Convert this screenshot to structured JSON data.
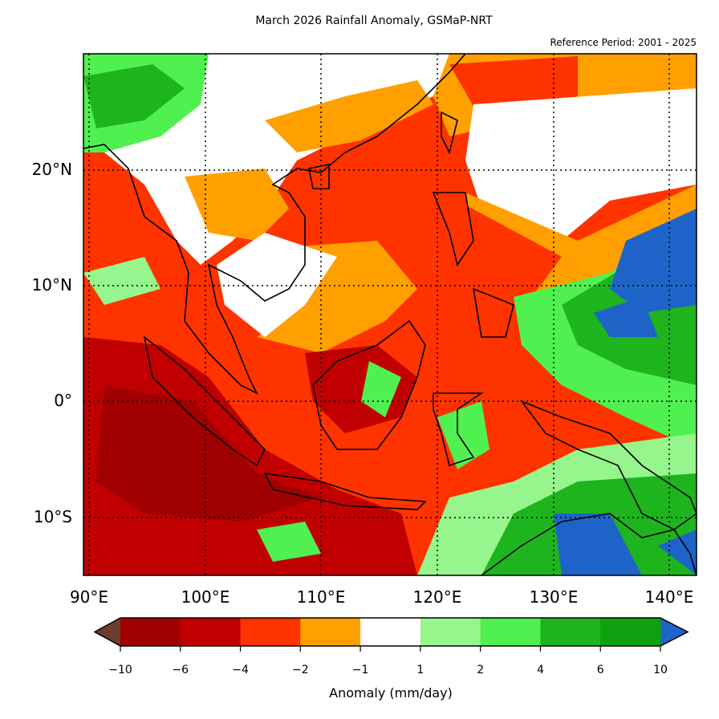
{
  "title": "March 2026 Rainfall Anomaly, GSMaP-NRT",
  "reference_period": "Reference Period: 2001 - 2025",
  "map": {
    "extent": {
      "lon": [
        90,
        142.5
      ],
      "lat": [
        -15,
        30
      ]
    },
    "lat_labels": [
      "20°N",
      "10°N",
      "0°",
      "10°S"
    ],
    "lon_labels": [
      "90°E",
      "100°E",
      "110°E",
      "120°E",
      "130°E",
      "140°E"
    ]
  },
  "colorbar": {
    "label": "Anomaly (mm/day)",
    "ticks": [
      "−10",
      "−6",
      "−4",
      "−2",
      "−1",
      "1",
      "2",
      "4",
      "6",
      "10"
    ],
    "colors": [
      "#a00000",
      "#c00000",
      "#ff3300",
      "#ffa000",
      "#ffffff",
      "#96f58c",
      "#50f050",
      "#1eb41e",
      "#0fa00f"
    ],
    "extend_low_color": "#6b3f2e",
    "extend_high_color": "#1e64c8"
  }
}
